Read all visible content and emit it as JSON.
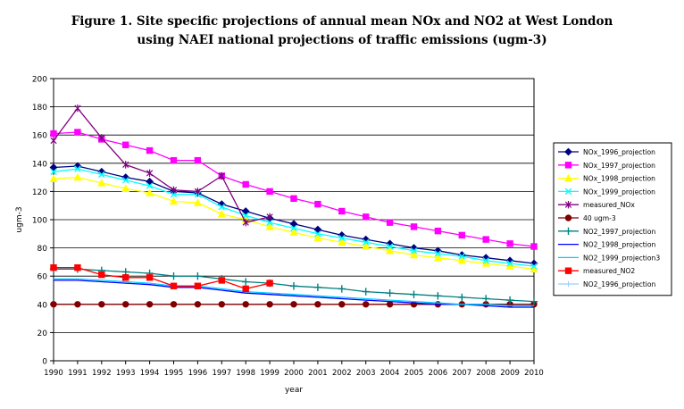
{
  "chart_data": {
    "type": "line",
    "title_line1": "Figure 1. Site specific projections of annual mean NOx and NO2 at West London",
    "title_line2": "using NAEI national projections of traffic emissions (ugm-3)",
    "xlabel": "year",
    "ylabel": "ugm-3",
    "ylim": [
      0,
      200
    ],
    "yticks": [
      "0",
      "20",
      "40",
      "60",
      "80",
      "100",
      "120",
      "140",
      "160",
      "180",
      "200"
    ],
    "x": [
      "1990",
      "1991",
      "1992",
      "1993",
      "1994",
      "1995",
      "1996",
      "1997",
      "1998",
      "1999",
      "2000",
      "2001",
      "2002",
      "2003",
      "2004",
      "2005",
      "2006",
      "2007",
      "2008",
      "2009",
      "2010"
    ],
    "grid": "horizontal",
    "legend_position": "right",
    "series": [
      {
        "name": "NOx_1996_projection",
        "color": "#000080",
        "marker": "diamond",
        "values": [
          137,
          138,
          134,
          130,
          127,
          120,
          119,
          111,
          106,
          101,
          97,
          93,
          89,
          86,
          83,
          80,
          78,
          75,
          73,
          71,
          69
        ]
      },
      {
        "name": "NOx_1997_projection",
        "color": "#ff00ff",
        "marker": "square",
        "values": [
          161,
          162,
          157,
          153,
          149,
          142,
          142,
          131,
          125,
          120,
          115,
          111,
          106,
          102,
          98,
          95,
          92,
          89,
          86,
          83,
          81
        ]
      },
      {
        "name": "NOx_1998_projection",
        "color": "#ffff00",
        "marker": "triangle",
        "values": [
          129,
          130,
          126,
          122,
          119,
          113,
          112,
          104,
          100,
          95,
          91,
          87,
          84,
          81,
          78,
          75,
          73,
          71,
          69,
          67,
          65
        ]
      },
      {
        "name": "NOx_1999_projection",
        "color": "#00ffff",
        "marker": "x",
        "values": [
          134,
          136,
          132,
          128,
          124,
          118,
          118,
          109,
          103,
          98,
          94,
          90,
          87,
          84,
          81,
          78,
          76,
          74,
          71,
          69,
          67
        ]
      },
      {
        "name": "measured_NOx",
        "color": "#800080",
        "marker": "star",
        "values": [
          156,
          179,
          158,
          139,
          133,
          121,
          120,
          131,
          98,
          102,
          null,
          null,
          null,
          null,
          null,
          null,
          null,
          null,
          null,
          null,
          null
        ]
      },
      {
        "name": "40 ugm-3",
        "color": "#800000",
        "marker": "circle",
        "values": [
          40,
          40,
          40,
          40,
          40,
          40,
          40,
          40,
          40,
          40,
          40,
          40,
          40,
          40,
          40,
          40,
          40,
          40,
          40,
          40,
          40
        ]
      },
      {
        "name": "NO2_1997_projection",
        "color": "#008080",
        "marker": "plus",
        "values": [
          65,
          65,
          64,
          63,
          62,
          60,
          60,
          58,
          56,
          55,
          53,
          52,
          51,
          49,
          48,
          47,
          46,
          45,
          44,
          43,
          42
        ]
      },
      {
        "name": "NO2_1998_projection",
        "color": "#0000ff",
        "marker": "none",
        "values": [
          57,
          57,
          56,
          55,
          54,
          52,
          52,
          50,
          48,
          47,
          46,
          45,
          44,
          43,
          42,
          41,
          40,
          40,
          39,
          38,
          38
        ]
      },
      {
        "name": "NO2_1999_projection3",
        "color": "#00ccff",
        "marker": "none",
        "values": [
          58,
          58,
          57,
          56,
          55,
          53,
          53,
          51,
          49,
          48,
          47,
          46,
          45,
          44,
          43,
          42,
          41,
          40,
          40,
          39,
          39
        ]
      },
      {
        "name": "measured_NO2",
        "color": "#ff0000",
        "marker": "square",
        "values": [
          66,
          66,
          61,
          59,
          59,
          53,
          53,
          57,
          51,
          55,
          null,
          null,
          null,
          null,
          null,
          null,
          null,
          null,
          null,
          null,
          null
        ]
      },
      {
        "name": "NO2_1996_projection",
        "color": "#99ccff",
        "marker": "cross",
        "values": [
          null,
          null,
          null,
          null,
          null,
          null,
          null,
          null,
          null,
          null,
          null,
          null,
          null,
          null,
          null,
          null,
          null,
          null,
          null,
          null,
          null
        ]
      }
    ]
  }
}
